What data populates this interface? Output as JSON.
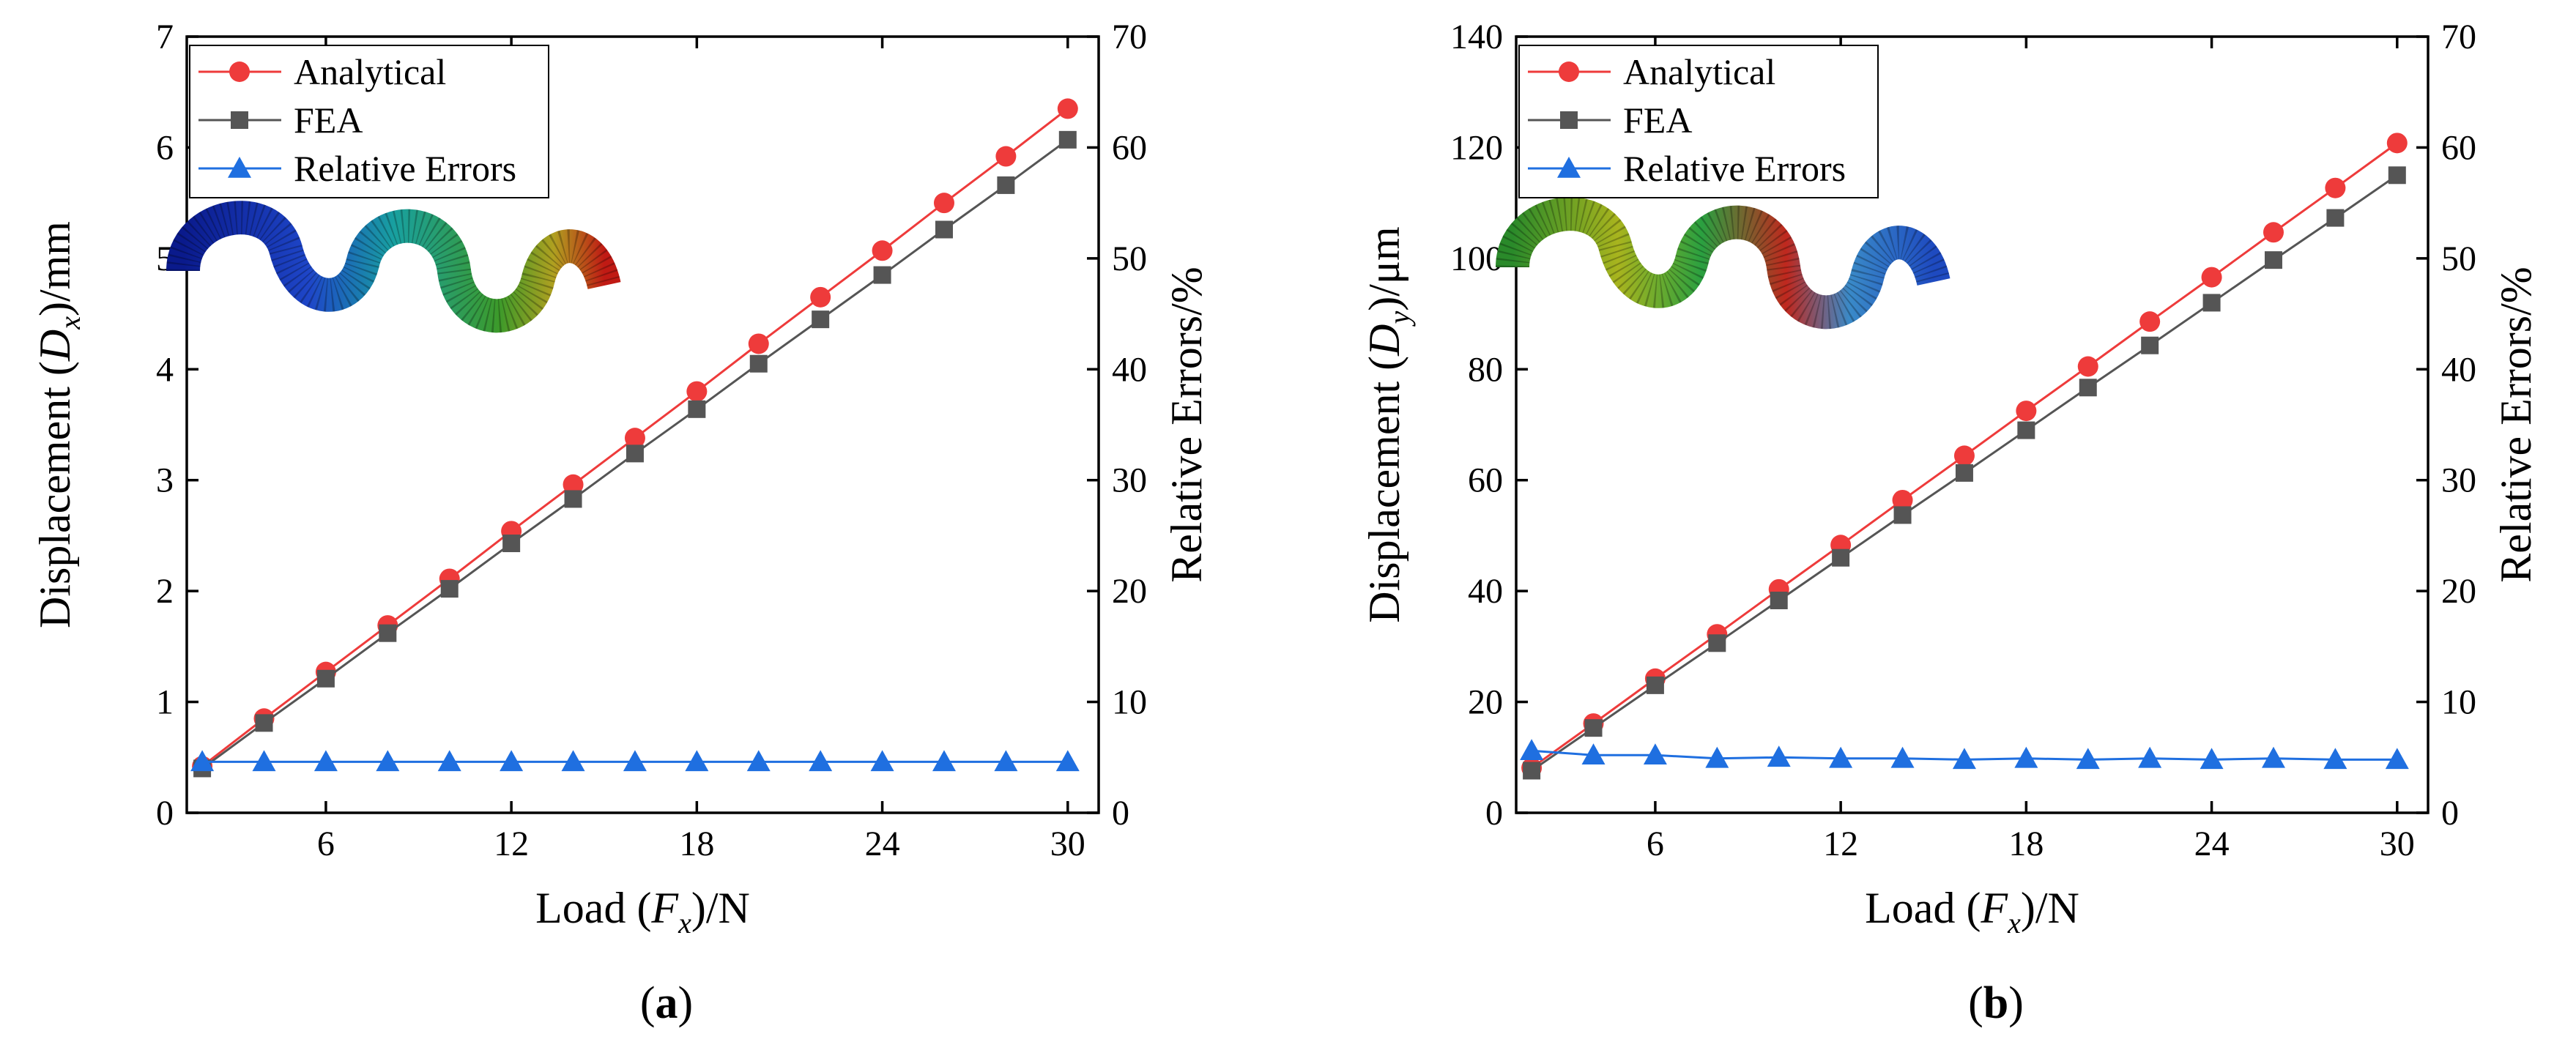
{
  "chart_data": [
    {
      "type": "line",
      "panel": "a",
      "panel_label": "(a)",
      "panel_label_parts": [
        "(",
        "a",
        ")"
      ],
      "xlabel": {
        "prefix": "Load (",
        "var": "F",
        "sub": "x",
        "suffix": ")/N"
      },
      "ylabel_left": {
        "prefix": "Displacement (",
        "var": "D",
        "sub": "x",
        "suffix": ")/mm"
      },
      "ylabel_right": "Relative Errors/%",
      "xlim": [
        1.5,
        31
      ],
      "ylim_left": [
        0,
        7
      ],
      "ylim_right": [
        0,
        70
      ],
      "xticks": [
        6,
        12,
        18,
        24,
        30
      ],
      "yticks_left": [
        0,
        1,
        2,
        3,
        4,
        5,
        6,
        7
      ],
      "yticks_right": [
        0,
        10,
        20,
        30,
        40,
        50,
        60,
        70
      ],
      "x": [
        2,
        4,
        6,
        8,
        10,
        12,
        14,
        16,
        18,
        20,
        22,
        24,
        26,
        28,
        30
      ],
      "series": [
        {
          "name": "Analytical",
          "axis": "left",
          "color": "#ee3b3b",
          "marker": "circle",
          "values": [
            0.42,
            0.85,
            1.27,
            1.69,
            2.11,
            2.54,
            2.96,
            3.38,
            3.8,
            4.23,
            4.65,
            5.07,
            5.5,
            5.92,
            6.35
          ]
        },
        {
          "name": "FEA",
          "axis": "left",
          "color": "#555555",
          "marker": "square",
          "values": [
            0.4,
            0.81,
            1.21,
            1.62,
            2.02,
            2.43,
            2.83,
            3.24,
            3.64,
            4.05,
            4.45,
            4.85,
            5.26,
            5.66,
            6.07
          ]
        },
        {
          "name": "Relative Errors",
          "axis": "right",
          "color": "#1f6fe0",
          "marker": "triangle",
          "values": [
            4.6,
            4.6,
            4.6,
            4.6,
            4.6,
            4.6,
            4.6,
            4.6,
            4.6,
            4.6,
            4.6,
            4.6,
            4.6,
            4.6,
            4.6
          ]
        }
      ],
      "legend_position": "top-left",
      "inset": "deformed S-shaped beam (FEA contour)"
    },
    {
      "type": "line",
      "panel": "b",
      "panel_label": "(b)",
      "panel_label_parts": [
        "(",
        "b",
        ")"
      ],
      "xlabel": {
        "prefix": "Load (",
        "var": "F",
        "sub": "x",
        "suffix": ")/N"
      },
      "ylabel_left": {
        "prefix": "Displacement (",
        "var": "D",
        "sub": "y",
        "suffix": ")/μm"
      },
      "ylabel_right": "Relative Errors/%",
      "xlim": [
        1.5,
        31
      ],
      "ylim_left": [
        0,
        140
      ],
      "ylim_right": [
        0,
        70
      ],
      "xticks": [
        6,
        12,
        18,
        24,
        30
      ],
      "yticks_left": [
        0,
        20,
        40,
        60,
        80,
        100,
        120,
        140
      ],
      "yticks_right": [
        0,
        10,
        20,
        30,
        40,
        50,
        60,
        70
      ],
      "x": [
        2,
        4,
        6,
        8,
        10,
        12,
        14,
        16,
        18,
        20,
        22,
        24,
        26,
        28,
        30
      ],
      "series": [
        {
          "name": "Analytical",
          "axis": "left",
          "color": "#ee3b3b",
          "marker": "circle",
          "values": [
            8.1,
            16.1,
            24.2,
            32.2,
            40.3,
            48.3,
            56.4,
            64.4,
            72.5,
            80.5,
            88.6,
            96.6,
            104.7,
            112.7,
            120.8
          ]
        },
        {
          "name": "FEA",
          "axis": "left",
          "color": "#555555",
          "marker": "square",
          "values": [
            7.6,
            15.3,
            23.0,
            30.6,
            38.3,
            46.0,
            53.7,
            61.3,
            69.0,
            76.7,
            84.3,
            92.0,
            99.7,
            107.3,
            115.0
          ]
        },
        {
          "name": "Relative Errors",
          "axis": "right",
          "color": "#1f6fe0",
          "marker": "triangle",
          "values": [
            5.6,
            5.2,
            5.2,
            4.9,
            5.0,
            4.9,
            4.9,
            4.8,
            4.9,
            4.8,
            4.9,
            4.8,
            4.9,
            4.8,
            4.8
          ]
        }
      ],
      "legend_position": "top-left",
      "inset": "deformed S-shaped beam (FEA contour)"
    }
  ]
}
